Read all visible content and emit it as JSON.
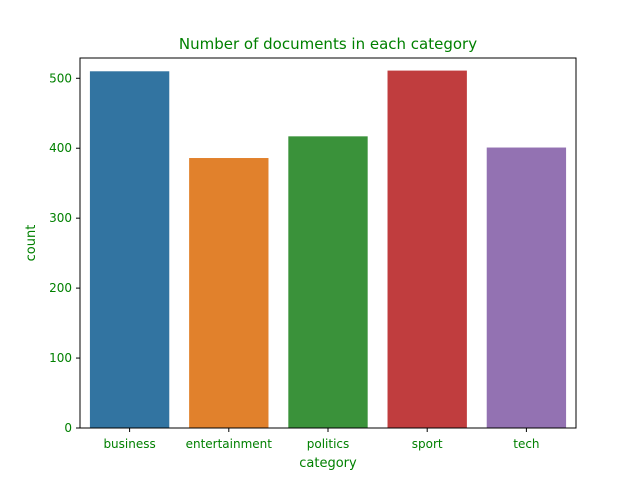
{
  "chart_data": {
    "type": "bar",
    "title": "Number of documents in each  category",
    "xlabel": "category",
    "ylabel": "count",
    "categories": [
      "business",
      "entertainment",
      "politics",
      "sport",
      "tech"
    ],
    "values": [
      510,
      386,
      417,
      511,
      401
    ],
    "ylim": [
      0,
      529
    ],
    "yticks": [
      0,
      100,
      200,
      300,
      400,
      500
    ],
    "grid": false,
    "legend": "none",
    "colors": [
      "#3274a1",
      "#e1812c",
      "#3a923a",
      "#c03d3e",
      "#9372b2"
    ],
    "text_color": "#008000"
  }
}
